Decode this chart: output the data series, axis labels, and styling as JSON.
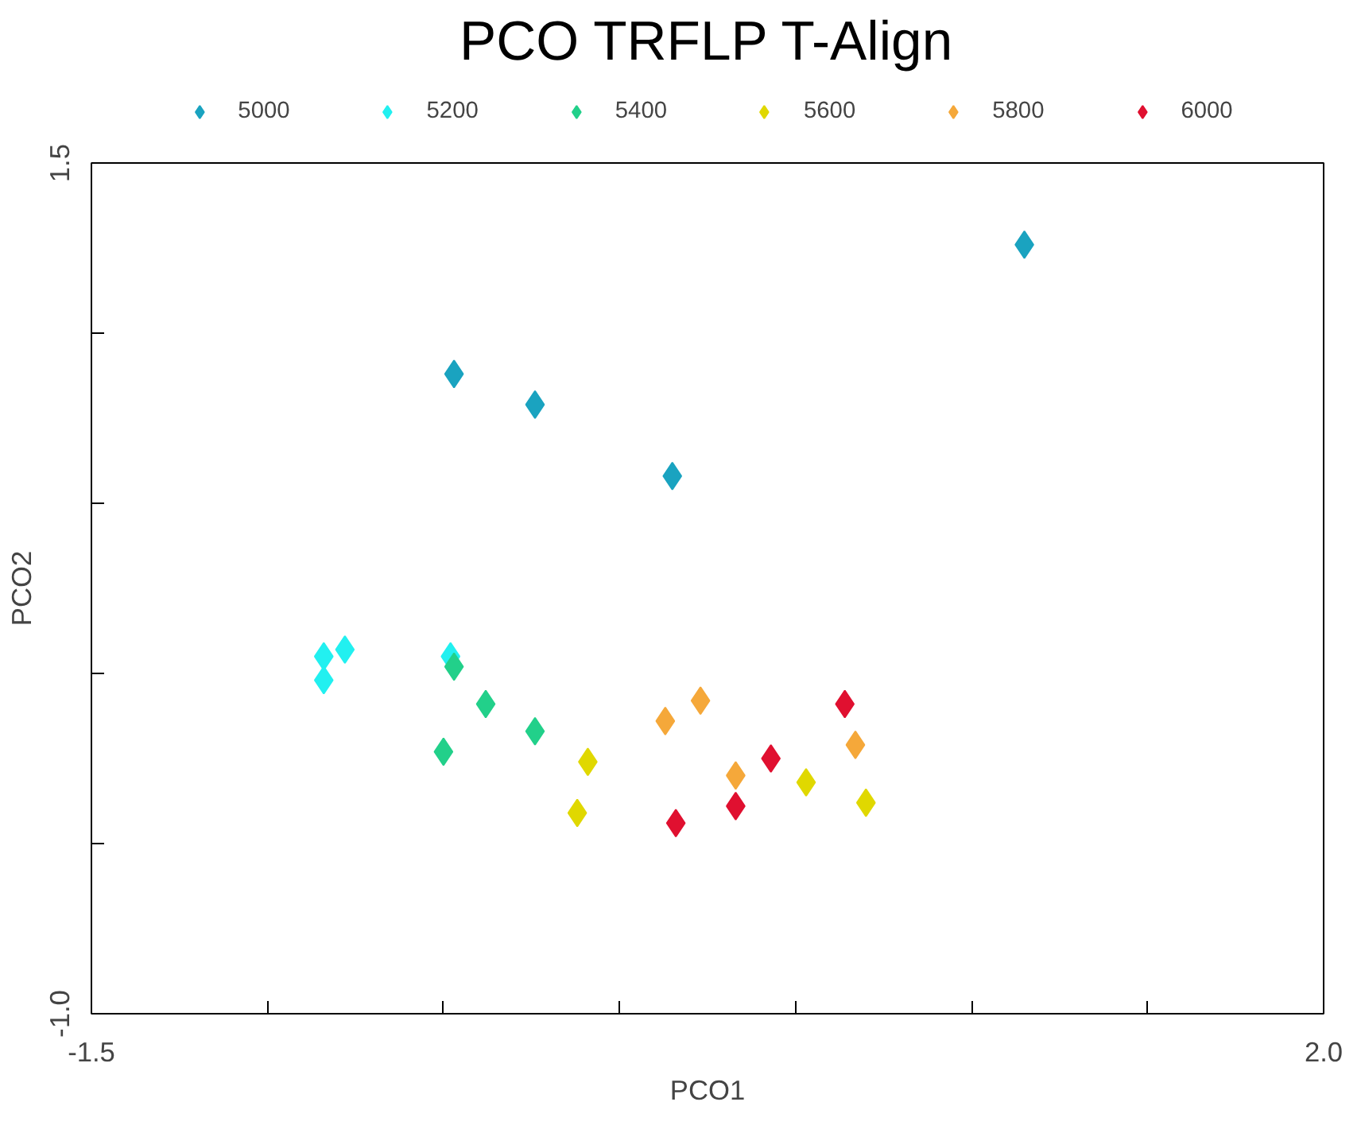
{
  "chart_data": {
    "type": "scatter",
    "title": "PCO TRFLP T-Align",
    "xlabel": "PCO1",
    "ylabel": "PCO2",
    "xlim": [
      -1.5,
      2.0
    ],
    "ylim": [
      -1.0,
      1.5
    ],
    "xticks": [
      -1.5,
      {
        "value": -1.0,
        "label": null
      },
      {
        "value": -0.5,
        "label": null
      },
      {
        "value": 0.0,
        "label": null
      },
      {
        "value": 0.5,
        "label": null
      },
      {
        "value": 1.0,
        "label": null
      },
      {
        "value": 1.5,
        "label": null
      },
      {
        "value": 2.0,
        "label": "2.0"
      }
    ],
    "yticks": [
      {
        "value": -1.0,
        "label": "-1.0"
      },
      {
        "value": -0.5,
        "label": null
      },
      {
        "value": 0.0,
        "label": null
      },
      {
        "value": 0.5,
        "label": null
      },
      {
        "value": 1.0,
        "label": null
      },
      1.5
    ],
    "marker": "diamond",
    "legend": "top",
    "grid": false,
    "series": [
      {
        "name": "5000",
        "color": "#1aa3c0",
        "x": [
          1.15,
          -0.47,
          -0.24,
          0.15
        ],
        "values": [
          1.26,
          0.88,
          0.79,
          0.58
        ]
      },
      {
        "name": "5200",
        "color": "#22f0f0",
        "x": [
          -0.84,
          -0.78,
          -0.84,
          -0.48
        ],
        "values": [
          0.05,
          0.07,
          -0.02,
          0.05
        ]
      },
      {
        "name": "5400",
        "color": "#22d08a",
        "x": [
          -0.47,
          -0.38,
          -0.24,
          -0.5
        ],
        "values": [
          0.02,
          -0.09,
          -0.17,
          -0.23
        ]
      },
      {
        "name": "5600",
        "color": "#e0d800",
        "x": [
          -0.09,
          -0.12,
          0.53,
          0.7
        ],
        "values": [
          -0.26,
          -0.41,
          -0.32,
          -0.38
        ]
      },
      {
        "name": "5800",
        "color": "#f5a83a",
        "x": [
          0.13,
          0.23,
          0.33,
          0.67
        ],
        "values": [
          -0.14,
          -0.08,
          -0.3,
          -0.21
        ]
      },
      {
        "name": "6000",
        "color": "#e01030",
        "x": [
          0.64,
          0.43,
          0.33,
          0.16
        ],
        "values": [
          -0.09,
          -0.25,
          -0.39,
          -0.44
        ]
      }
    ]
  }
}
